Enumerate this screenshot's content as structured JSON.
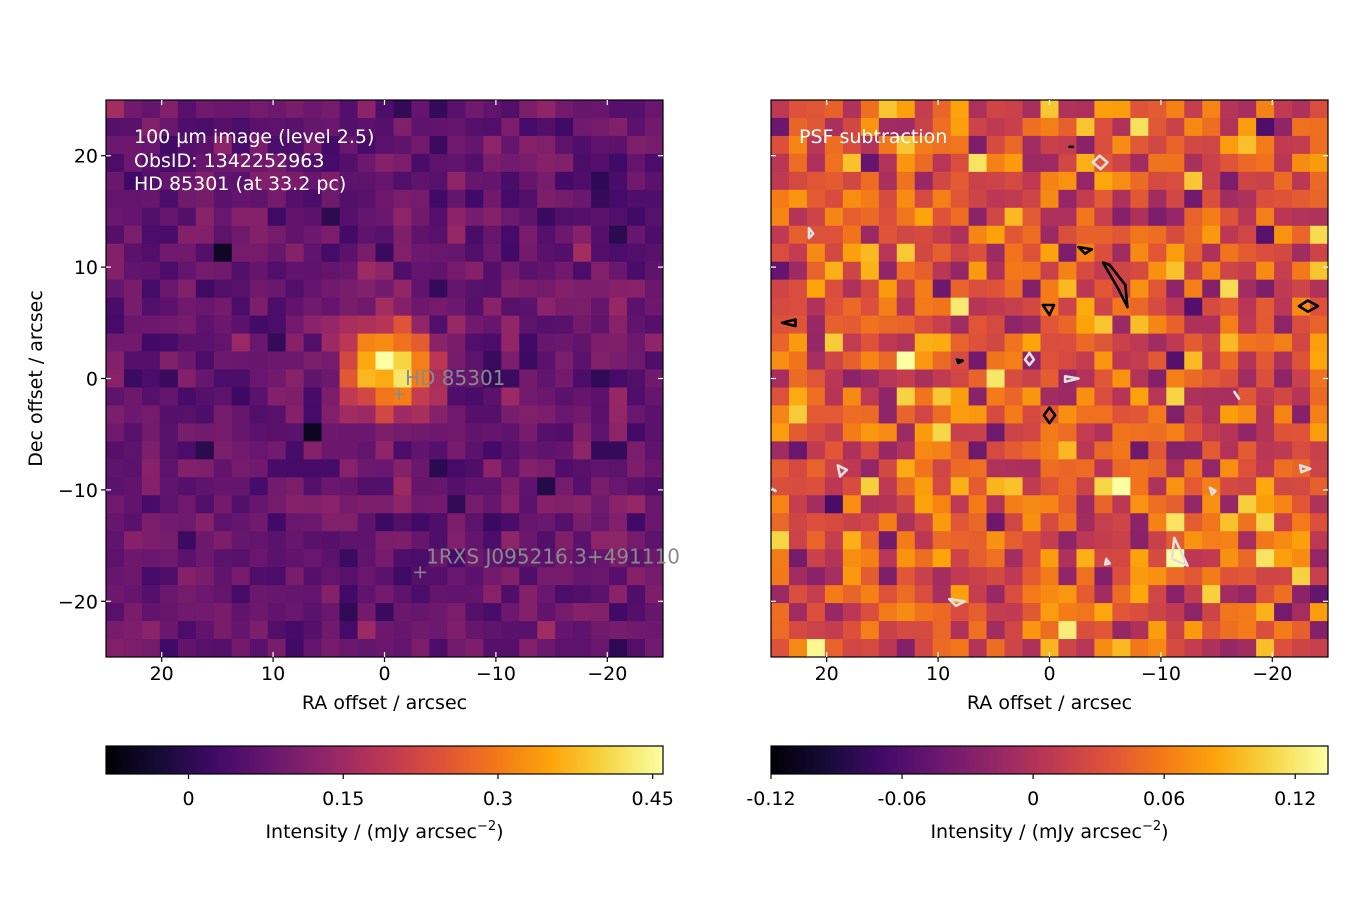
{
  "chart_data": [
    {
      "type": "heatmap",
      "title": "",
      "xlabel": "RA offset / arcsec",
      "ylabel": "Dec offset / arcsec",
      "xlim": [
        25,
        -25
      ],
      "ylim": [
        -25,
        25
      ],
      "xticks": [
        20,
        10,
        0,
        -10,
        -20
      ],
      "yticks": [
        -20,
        -10,
        0,
        10,
        20
      ],
      "x_tick_labels": [
        "20",
        "10",
        "0",
        "−10",
        "−20"
      ],
      "y_tick_labels": [
        "−20",
        "−10",
        "0",
        "10",
        "20"
      ],
      "grid": false,
      "colormap": "inferno",
      "annotation_lines": [
        "100 µm image (level 2.5)",
        "ObsID: 1342252963",
        "HD 85301 (at 33.2 pc)"
      ],
      "markers": [
        {
          "label": "HD  85301",
          "x": -1.3,
          "y": -1.4
        },
        {
          "label": "1RXS J095216.3+491110",
          "x": -3.2,
          "y": -17.4
        }
      ],
      "colorbar": {
        "label": "Intensity / (mJy arcsec",
        "label_exponent": "−2",
        "label_end": ")",
        "range": [
          -0.08,
          0.46
        ],
        "ticks": [
          0,
          0.15,
          0.3,
          0.45
        ],
        "tick_labels": [
          "0",
          "0.15",
          "0.3",
          "0.45"
        ]
      },
      "sources": [
        {
          "x": -0.4,
          "y": 0.8,
          "amplitude": 0.38,
          "sigma": 2.6
        }
      ],
      "background_level": 0.075,
      "noise_level": 0.03
    },
    {
      "type": "heatmap",
      "title": "",
      "xlabel": "RA offset / arcsec",
      "ylabel": "",
      "xlim": [
        25,
        -25
      ],
      "ylim": [
        -25,
        25
      ],
      "xticks": [
        20,
        10,
        0,
        -10,
        -20
      ],
      "yticks": [
        -20,
        -10,
        0,
        10,
        20
      ],
      "x_tick_labels": [
        "20",
        "10",
        "0",
        "−10",
        "−20"
      ],
      "grid": false,
      "colormap": "inferno",
      "annotation_lines": [
        "PSF subtraction"
      ],
      "colorbar": {
        "label": "Intensity / (mJy arcsec",
        "label_exponent": "−2",
        "label_end": ")",
        "range": [
          -0.12,
          0.135
        ],
        "ticks": [
          -0.12,
          -0.06,
          0,
          0.06,
          0.12
        ],
        "tick_labels": [
          "-0.12",
          "-0.06",
          "0",
          "0.06",
          "0.12"
        ]
      },
      "background_level": 0.035,
      "noise_level": 0.035,
      "contours": [
        {
          "level": "positive",
          "color": "#000000",
          "points": [
            [
              -4.8,
              10.4
            ],
            [
              -6.2,
              8.0
            ],
            [
              -7.0,
              6.4
            ],
            [
              -6.8,
              8.4
            ],
            [
              -5.4,
              10.2
            ]
          ]
        },
        {
          "level": "positive",
          "color": "#000000",
          "points": [
            [
              -2.6,
              11.8
            ],
            [
              -3.8,
              11.6
            ],
            [
              -3.2,
              11.2
            ]
          ]
        },
        {
          "level": "positive",
          "color": "#000000",
          "points": [
            [
              -1.8,
              20.8
            ],
            [
              -2.1,
              20.8
            ]
          ]
        },
        {
          "level": "positive",
          "color": "#000000",
          "points": [
            [
              0.6,
              6.6
            ],
            [
              -0.4,
              6.6
            ],
            [
              0.0,
              5.7
            ]
          ]
        },
        {
          "level": "positive",
          "color": "#000000",
          "points": [
            [
              0.0,
              -2.6
            ],
            [
              -0.5,
              -3.3
            ],
            [
              0.0,
              -4.0
            ],
            [
              0.5,
              -3.3
            ]
          ]
        },
        {
          "level": "positive",
          "color": "#000000",
          "points": [
            [
              22.8,
              5.3
            ],
            [
              24.0,
              5.0
            ],
            [
              22.8,
              4.7
            ]
          ]
        },
        {
          "level": "positive",
          "color": "#000000",
          "points": [
            [
              8.3,
              1.7
            ],
            [
              7.8,
              1.6
            ],
            [
              8.2,
              1.4
            ]
          ]
        },
        {
          "level": "positive",
          "color": "#000000",
          "points": [
            [
              -23.2,
              7.0
            ],
            [
              -24.1,
              6.5
            ],
            [
              -23.2,
              6.0
            ],
            [
              -22.4,
              6.5
            ]
          ]
        },
        {
          "level": "negative",
          "color": "#e0e0e0",
          "points": [
            [
              -4.5,
              20.0
            ],
            [
              -5.2,
              19.4
            ],
            [
              -4.6,
              18.8
            ],
            [
              -3.9,
              19.4
            ]
          ]
        },
        {
          "level": "negative",
          "color": "#e0e0e0",
          "points": [
            [
              21.6,
              13.5
            ],
            [
              21.2,
              13.0
            ],
            [
              21.6,
              12.6
            ]
          ]
        },
        {
          "level": "negative",
          "color": "#e0e0e0",
          "points": [
            [
              1.8,
              2.3
            ],
            [
              1.4,
              1.7
            ],
            [
              1.8,
              1.2
            ],
            [
              2.2,
              1.7
            ]
          ]
        },
        {
          "level": "negative",
          "color": "#e0e0e0",
          "points": [
            [
              -1.4,
              0.2
            ],
            [
              -2.6,
              0.0
            ],
            [
              -1.4,
              -0.3
            ]
          ]
        },
        {
          "level": "negative",
          "color": "#e0e0e0",
          "points": [
            [
              -16.6,
              -1.2
            ],
            [
              -17.0,
              -1.8
            ],
            [
              -16.8,
              -1.5
            ]
          ]
        },
        {
          "level": "negative",
          "color": "#e0e0e0",
          "points": [
            [
              -14.4,
              -9.8
            ],
            [
              -14.9,
              -10.1
            ],
            [
              -14.6,
              -10.4
            ]
          ]
        },
        {
          "level": "negative",
          "color": "#e0e0e0",
          "points": [
            [
              -22.5,
              -7.8
            ],
            [
              -23.4,
              -8.1
            ],
            [
              -22.6,
              -8.4
            ]
          ]
        },
        {
          "level": "negative",
          "color": "#e0e0e0",
          "points": [
            [
              19.0,
              -7.8
            ],
            [
              18.2,
              -8.2
            ],
            [
              18.8,
              -8.8
            ]
          ]
        },
        {
          "level": "negative",
          "color": "#e0e0e0",
          "points": [
            [
              -11.2,
              -14.3
            ],
            [
              -12.4,
              -16.8
            ],
            [
              -11.0,
              -16.2
            ]
          ]
        },
        {
          "level": "negative",
          "color": "#e0e0e0",
          "points": [
            [
              -5.1,
              -16.2
            ],
            [
              -5.4,
              -16.6
            ],
            [
              -5.0,
              -16.7
            ]
          ]
        },
        {
          "level": "negative",
          "color": "#e0e0e0",
          "points": [
            [
              9.0,
              -19.8
            ],
            [
              7.6,
              -20.0
            ],
            [
              8.4,
              -20.4
            ]
          ]
        },
        {
          "level": "negative",
          "color": "#e0e0e0",
          "points": [
            [
              24.9,
              -9.9
            ],
            [
              24.6,
              -10.1
            ]
          ]
        }
      ]
    }
  ]
}
